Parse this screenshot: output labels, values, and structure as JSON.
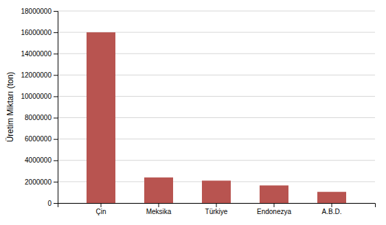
{
  "chart_data": {
    "type": "bar",
    "categories": [
      "Çin",
      "Meksika",
      "Türkiye",
      "Endonezya",
      "A.B.D."
    ],
    "values": [
      16000000,
      2400000,
      2100000,
      1650000,
      1050000
    ],
    "color": "#b85450",
    "ylabel": "Üretim Miktarı (ton)",
    "ylim": [
      0,
      18000000
    ],
    "yticks": [
      0,
      2000000,
      4000000,
      6000000,
      8000000,
      10000000,
      12000000,
      14000000,
      16000000,
      18000000
    ],
    "grid": true
  }
}
